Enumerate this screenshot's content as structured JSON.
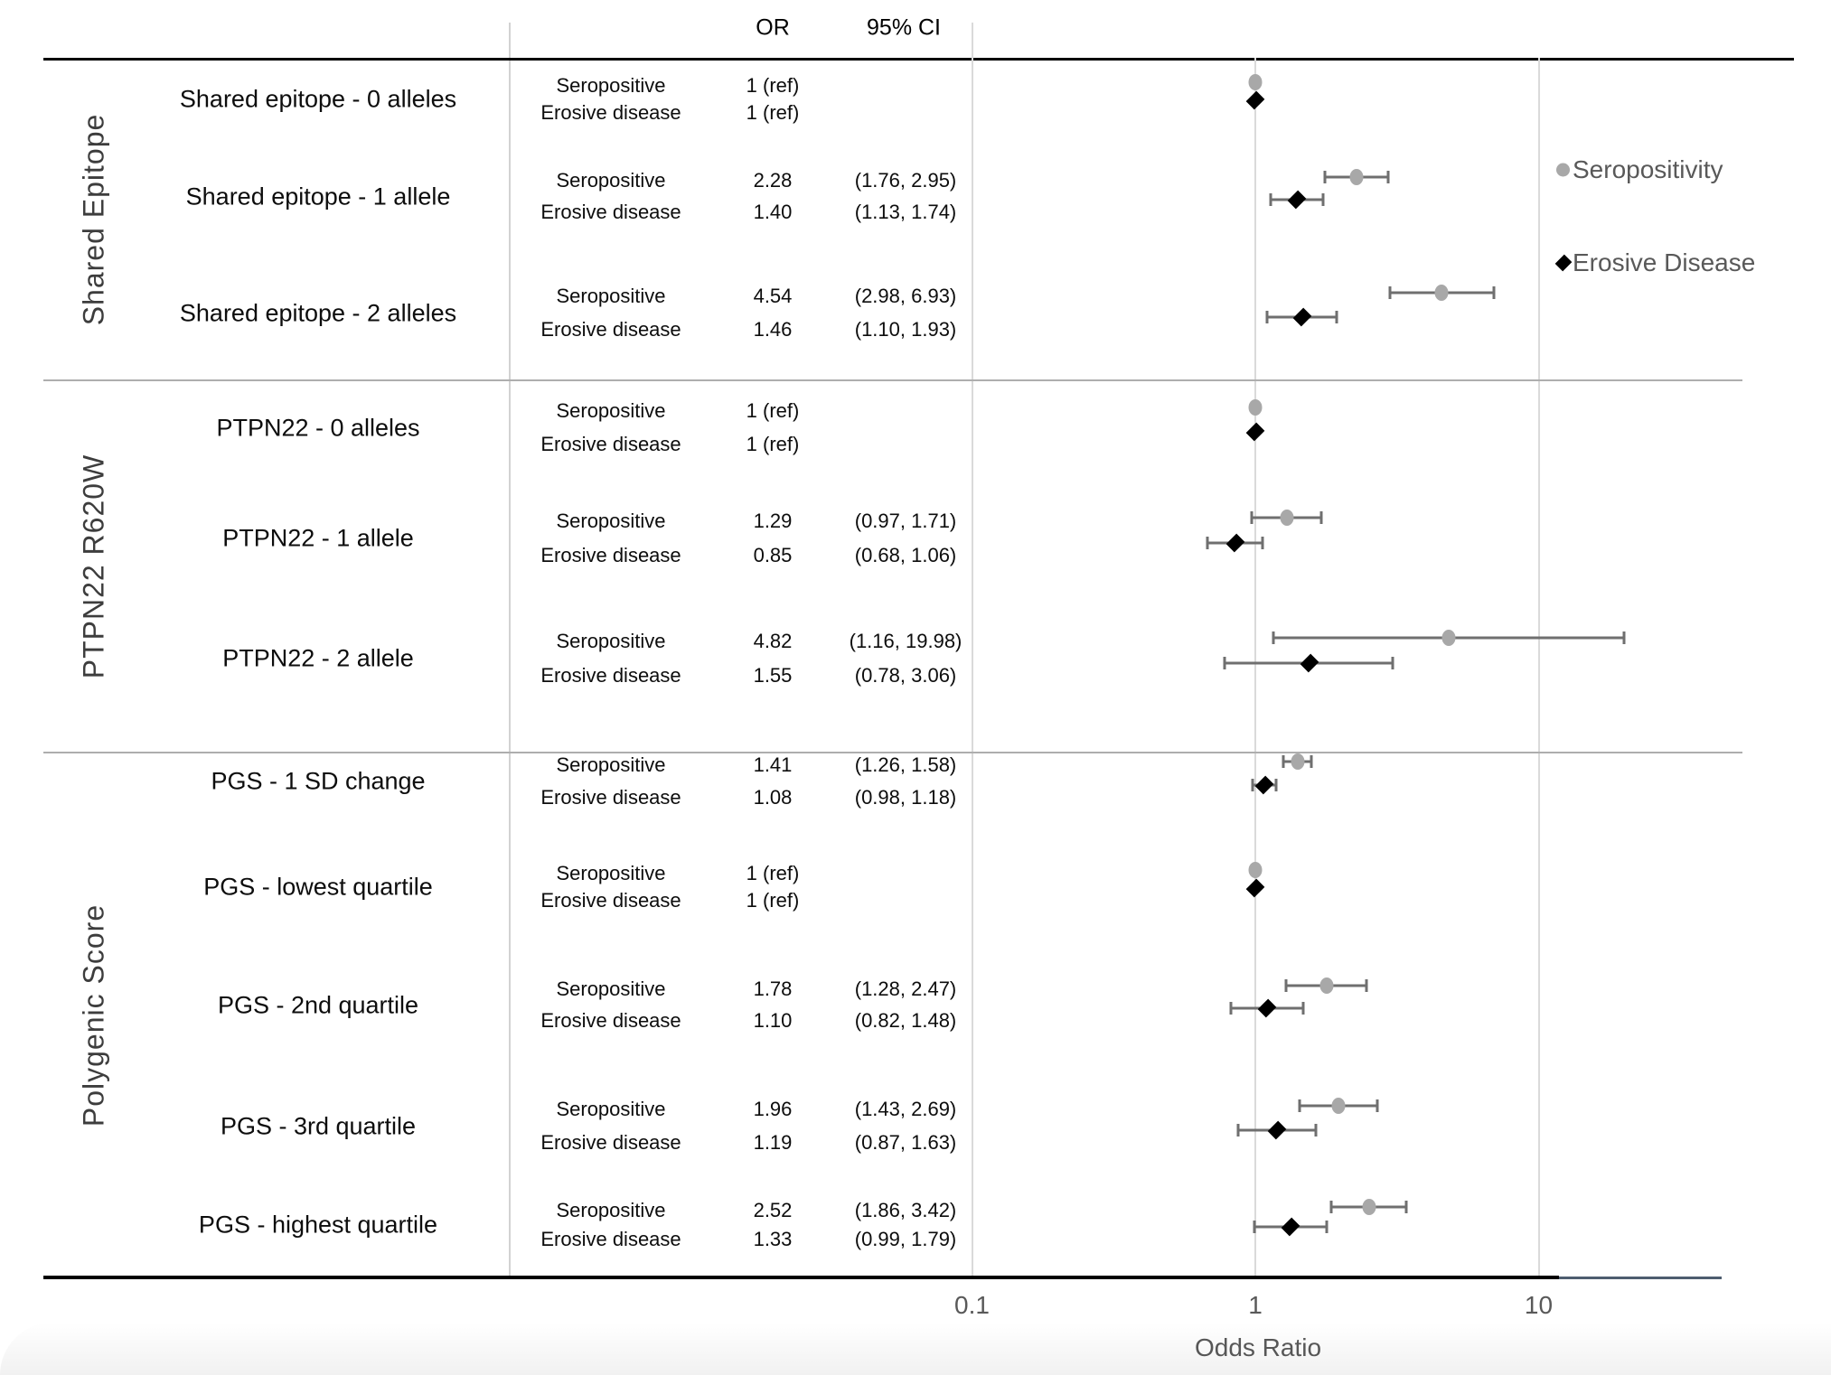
{
  "table": {
    "headers": {
      "or": "OR",
      "ci": "95% CI"
    },
    "outcome_labels": [
      "Seropositive",
      "Erosive disease"
    ]
  },
  "axis": {
    "label": "Odds Ratio",
    "ticks": [
      {
        "text": "0.1",
        "value": 0.1
      },
      {
        "text": "1",
        "value": 1
      },
      {
        "text": "10",
        "value": 10
      }
    ]
  },
  "legend": {
    "items": [
      {
        "label": "Seropositivity",
        "marker": "circle",
        "color": "#a8a8a8"
      },
      {
        "label": "Erosive Disease",
        "marker": "diamond",
        "color": "#000000"
      }
    ]
  },
  "colors": {
    "seropositivity_marker": "#a8a8a8",
    "erosive_marker": "#000000",
    "error_bar": "#6f6f6f",
    "gridline": "#dadada",
    "divider": "#aeaeae",
    "axis_text": "#595959",
    "axis_line": "#000000",
    "axis_line_extension": "#4e5d6f"
  },
  "chart_data": {
    "type": "scatter",
    "variant": "forest-plot",
    "title": "",
    "xlabel": "Odds Ratio",
    "x_axis": {
      "scale": "log10",
      "tick_values": [
        0.1,
        1,
        10
      ],
      "tick_labels": [
        "0.1",
        "1",
        "10"
      ],
      "range": [
        0.09,
        50
      ]
    },
    "series_names": [
      "Seropositivity",
      "Erosive Disease"
    ],
    "legend_position": "right",
    "grid": "vertical",
    "groups": [
      {
        "group": "Shared Epitope",
        "rows": [
          {
            "label": "Shared epitope - 0 alleles",
            "estimates": [
              {
                "outcome": "Seropositive",
                "or": 1,
                "or_text": "1 (ref)",
                "ci": null,
                "ci_text": ""
              },
              {
                "outcome": "Erosive disease",
                "or": 1,
                "or_text": "1 (ref)",
                "ci": null,
                "ci_text": ""
              }
            ]
          },
          {
            "label": "Shared epitope - 1 allele",
            "estimates": [
              {
                "outcome": "Seropositive",
                "or": 2.28,
                "or_text": "2.28",
                "ci": [
                  1.76,
                  2.95
                ],
                "ci_text": "(1.76, 2.95)"
              },
              {
                "outcome": "Erosive disease",
                "or": 1.4,
                "or_text": "1.40",
                "ci": [
                  1.13,
                  1.74
                ],
                "ci_text": "(1.13, 1.74)"
              }
            ]
          },
          {
            "label": "Shared epitope - 2 alleles",
            "estimates": [
              {
                "outcome": "Seropositive",
                "or": 4.54,
                "or_text": "4.54",
                "ci": [
                  2.98,
                  6.93
                ],
                "ci_text": "(2.98, 6.93)"
              },
              {
                "outcome": "Erosive disease",
                "or": 1.46,
                "or_text": "1.46",
                "ci": [
                  1.1,
                  1.93
                ],
                "ci_text": "(1.10, 1.93)"
              }
            ]
          }
        ]
      },
      {
        "group": "PTPN22 R620W",
        "rows": [
          {
            "label": "PTPN22 - 0 alleles",
            "estimates": [
              {
                "outcome": "Seropositive",
                "or": 1,
                "or_text": "1 (ref)",
                "ci": null,
                "ci_text": ""
              },
              {
                "outcome": "Erosive disease",
                "or": 1,
                "or_text": "1 (ref)",
                "ci": null,
                "ci_text": ""
              }
            ]
          },
          {
            "label": "PTPN22 - 1 allele",
            "estimates": [
              {
                "outcome": "Seropositive",
                "or": 1.29,
                "or_text": "1.29",
                "ci": [
                  0.97,
                  1.71
                ],
                "ci_text": "(0.97, 1.71)"
              },
              {
                "outcome": "Erosive disease",
                "or": 0.85,
                "or_text": "0.85",
                "ci": [
                  0.68,
                  1.06
                ],
                "ci_text": "(0.68, 1.06)"
              }
            ]
          },
          {
            "label": "PTPN22 - 2 allele",
            "estimates": [
              {
                "outcome": "Seropositive",
                "or": 4.82,
                "or_text": "4.82",
                "ci": [
                  1.16,
                  19.98
                ],
                "ci_text": "(1.16, 19.98)"
              },
              {
                "outcome": "Erosive disease",
                "or": 1.55,
                "or_text": "1.55",
                "ci": [
                  0.78,
                  3.06
                ],
                "ci_text": "(0.78, 3.06)"
              }
            ]
          }
        ]
      },
      {
        "group": "Polygenic Score",
        "rows": [
          {
            "label": "PGS - 1 SD change",
            "estimates": [
              {
                "outcome": "Seropositive",
                "or": 1.41,
                "or_text": "1.41",
                "ci": [
                  1.26,
                  1.58
                ],
                "ci_text": "(1.26, 1.58)"
              },
              {
                "outcome": "Erosive disease",
                "or": 1.08,
                "or_text": "1.08",
                "ci": [
                  0.98,
                  1.18
                ],
                "ci_text": "(0.98, 1.18)"
              }
            ]
          },
          {
            "label": "PGS - lowest quartile",
            "estimates": [
              {
                "outcome": "Seropositive",
                "or": 1,
                "or_text": "1 (ref)",
                "ci": null,
                "ci_text": ""
              },
              {
                "outcome": "Erosive disease",
                "or": 1,
                "or_text": "1 (ref)",
                "ci": null,
                "ci_text": ""
              }
            ]
          },
          {
            "label": "PGS - 2nd quartile",
            "estimates": [
              {
                "outcome": "Seropositive",
                "or": 1.78,
                "or_text": "1.78",
                "ci": [
                  1.28,
                  2.47
                ],
                "ci_text": "(1.28, 2.47)"
              },
              {
                "outcome": "Erosive disease",
                "or": 1.1,
                "or_text": "1.10",
                "ci": [
                  0.82,
                  1.48
                ],
                "ci_text": "(0.82, 1.48)"
              }
            ]
          },
          {
            "label": "PGS - 3rd quartile",
            "estimates": [
              {
                "outcome": "Seropositive",
                "or": 1.96,
                "or_text": "1.96",
                "ci": [
                  1.43,
                  2.69
                ],
                "ci_text": "(1.43, 2.69)"
              },
              {
                "outcome": "Erosive disease",
                "or": 1.19,
                "or_text": "1.19",
                "ci": [
                  0.87,
                  1.63
                ],
                "ci_text": "(0.87, 1.63)"
              }
            ]
          },
          {
            "label": "PGS - highest quartile",
            "estimates": [
              {
                "outcome": "Seropositive",
                "or": 2.52,
                "or_text": "2.52",
                "ci": [
                  1.86,
                  3.42
                ],
                "ci_text": "(1.86, 3.42)"
              },
              {
                "outcome": "Erosive disease",
                "or": 1.33,
                "or_text": "1.33",
                "ci": [
                  0.99,
                  1.79
                ],
                "ci_text": "(0.99, 1.79)"
              }
            ]
          }
        ]
      }
    ]
  }
}
